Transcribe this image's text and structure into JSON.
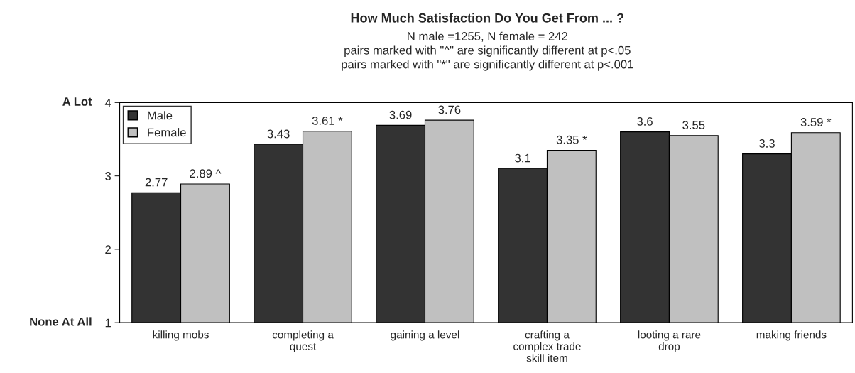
{
  "chart_data": {
    "type": "bar",
    "title": "How Much Satisfaction Do You Get From ... ?",
    "subtitle": "N male =1255, N female = 242\npairs marked with \"^\" are significantly different at p<.05\npairs marked with \"*\" are significantly different at p<.001",
    "categories": [
      "killing mobs",
      "completing a\nquest",
      "gaining a level",
      "crafting a\ncomplex trade\nskill item",
      "looting a rare\ndrop",
      "making friends"
    ],
    "series": [
      {
        "name": "Male",
        "color": "#333333",
        "values": [
          2.77,
          3.43,
          3.69,
          3.1,
          3.6,
          3.3
        ],
        "value_labels": [
          "2.77",
          "3.43",
          "3.69",
          "3.1",
          "3.6",
          "3.3"
        ]
      },
      {
        "name": "Female",
        "color": "#c0c0c0",
        "values": [
          2.89,
          3.61,
          3.76,
          3.35,
          3.55,
          3.59
        ],
        "value_labels": [
          "2.89 ^",
          "3.61 *",
          "3.76",
          "3.35 *",
          "3.55",
          "3.59 *"
        ]
      }
    ],
    "ylim": [
      1,
      4
    ],
    "yticks": [
      1,
      2,
      3,
      4
    ],
    "grid": false,
    "legend": "top left",
    "annotations": [
      "A Lot",
      "None At All"
    ]
  }
}
